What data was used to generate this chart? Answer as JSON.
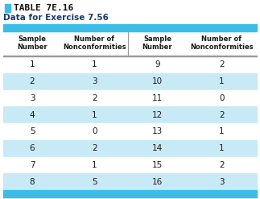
{
  "title_prefix": "TABLE 7E.16",
  "subtitle": "Data for Exercise 7.56",
  "col_headers": [
    "Sample\nNumber",
    "Number of\nNonconformities",
    "Sample\nNumber",
    "Number of\nNonconformities"
  ],
  "rows": [
    [
      "1",
      "1",
      "9",
      "2"
    ],
    [
      "2",
      "3",
      "10",
      "1"
    ],
    [
      "3",
      "2",
      "11",
      "0"
    ],
    [
      "4",
      "1",
      "12",
      "2"
    ],
    [
      "5",
      "0",
      "13",
      "1"
    ],
    [
      "6",
      "2",
      "14",
      "1"
    ],
    [
      "7",
      "1",
      "15",
      "2"
    ],
    [
      "8",
      "5",
      "16",
      "3"
    ]
  ],
  "bg_color": "#ffffff",
  "header_bar_color": "#3bbde8",
  "alt_row_color": "#c8eaf7",
  "white_row_color": "#ffffff",
  "title_color": "#111111",
  "subtitle_color": "#1a3a6b",
  "text_color": "#1a1a1a",
  "header_text_color": "#1a1a1a",
  "title_square_color": "#3bbde8",
  "bottom_bar_color": "#3bbde8",
  "header_sep_color": "#999999",
  "mid_sep_color": "#999999"
}
